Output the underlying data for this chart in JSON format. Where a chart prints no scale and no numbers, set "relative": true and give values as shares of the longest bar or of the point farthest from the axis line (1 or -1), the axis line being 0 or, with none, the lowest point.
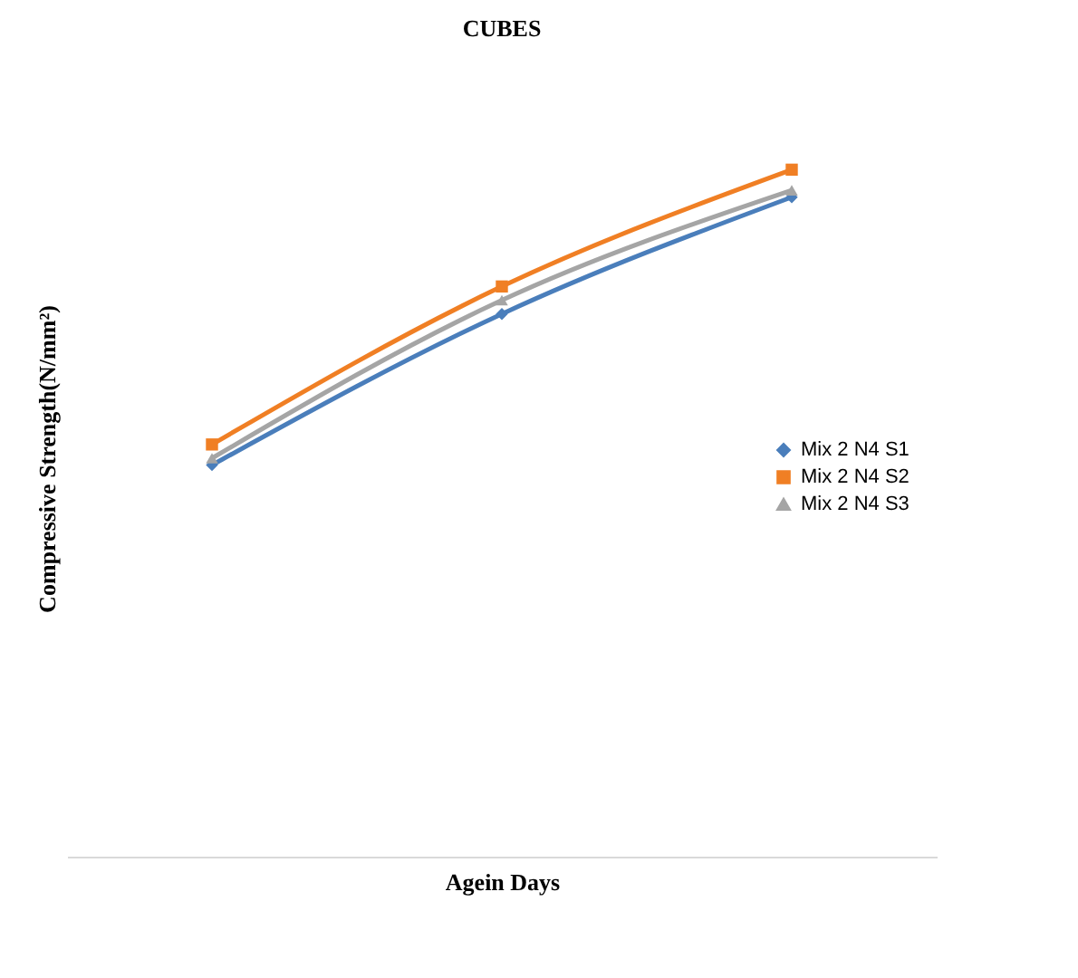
{
  "chart_data": {
    "type": "line",
    "title": "CUBES",
    "xlabel": "Agein Days",
    "ylabel": "Compressive Strength(N/mm²)",
    "relative": true,
    "categories": [
      null,
      null,
      null
    ],
    "legend": "right",
    "grid": false,
    "series": [
      {
        "name": "Mix 2 N4 S1",
        "color": "#4a7ebb",
        "marker": "diamond",
        "values": [
          0.57,
          0.79,
          0.96
        ]
      },
      {
        "name": "Mix 2 N4 S2",
        "color": "#f07f24",
        "marker": "square",
        "values": [
          0.6,
          0.83,
          1
        ]
      },
      {
        "name": "Mix 2 N4 S3",
        "color": "#a5a5a5",
        "marker": "triangle",
        "values": [
          0.58,
          0.81,
          0.97
        ]
      }
    ]
  }
}
